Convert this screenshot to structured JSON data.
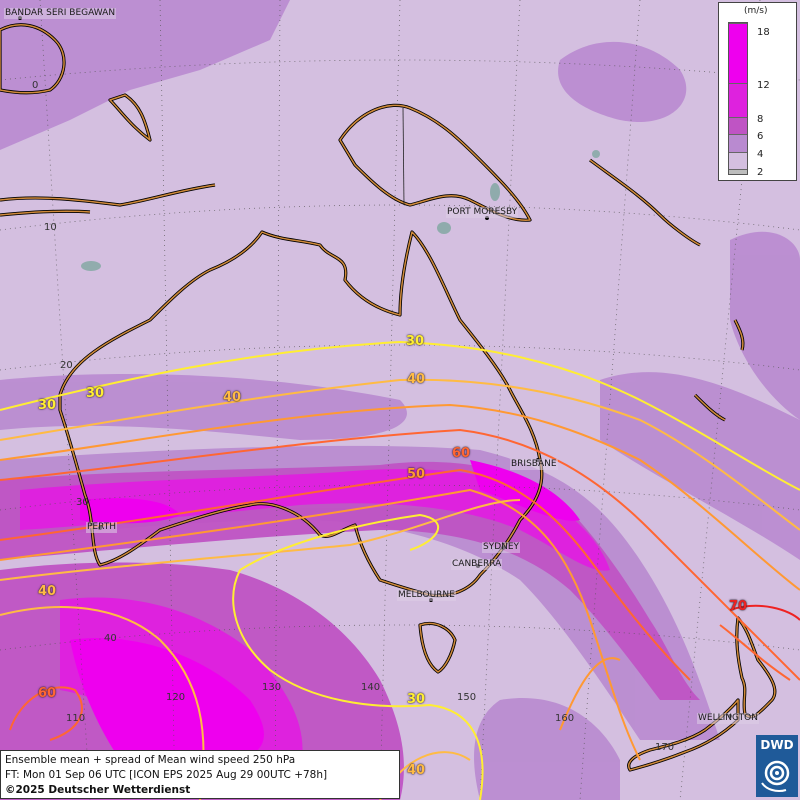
{
  "legend": {
    "unit": "(m/s)",
    "levels": [
      {
        "value": "18",
        "color": "#ee00ee"
      },
      {
        "value": "12",
        "color": "#de22de"
      },
      {
        "value": "8",
        "color": "#bf54c4"
      },
      {
        "value": "6",
        "color": "#b98ad0"
      },
      {
        "value": "4",
        "color": "#d4bfe0"
      },
      {
        "value": "2",
        "color": "#bdbdbd"
      }
    ]
  },
  "cities": {
    "bandar": "BANDAR SERI BEGAWAN",
    "port_moresby": "PORT MORESBY",
    "brisbane": "BRISBANE",
    "perth": "PERTH",
    "sydney": "SYDNEY",
    "canberra": "CANBERRA",
    "melbourne": "MELBOURNE",
    "wellington": "WELLINGTON"
  },
  "grid_labels": {
    "lat_0": "0",
    "lat_10": "10",
    "lat_20": "20",
    "lat_30": "30",
    "lat_40": "40",
    "lon_110": "110",
    "lon_120": "120",
    "lon_130": "130",
    "lon_140": "140",
    "lon_150": "150",
    "lon_160": "160",
    "lon_170": "170"
  },
  "contour_labels": {
    "c30_north": "30",
    "c30_west": "30",
    "c30_west2": "30",
    "c40_mid": "40",
    "c40_east": "40",
    "c50": "50",
    "c60": "60",
    "c70": "70",
    "c40_sw": "40",
    "c60_sw": "60",
    "c30_south": "30",
    "c40_bottom": "40"
  },
  "contour_colors": {
    "c30": "#ffee33",
    "c40": "#ffbb44",
    "c50": "#ff9933",
    "c60": "#ff6633",
    "c70": "#ee2222"
  },
  "info": {
    "line1": "Ensemble mean + spread of Mean wind speed 250 hPa",
    "line2": "FT: Mon 01 Sep 06 UTC [ICON EPS 2025 Aug 29 00UTC +78h]",
    "line3": "©2025 Deutscher Wetterdienst"
  },
  "logo": {
    "text": "DWD"
  }
}
